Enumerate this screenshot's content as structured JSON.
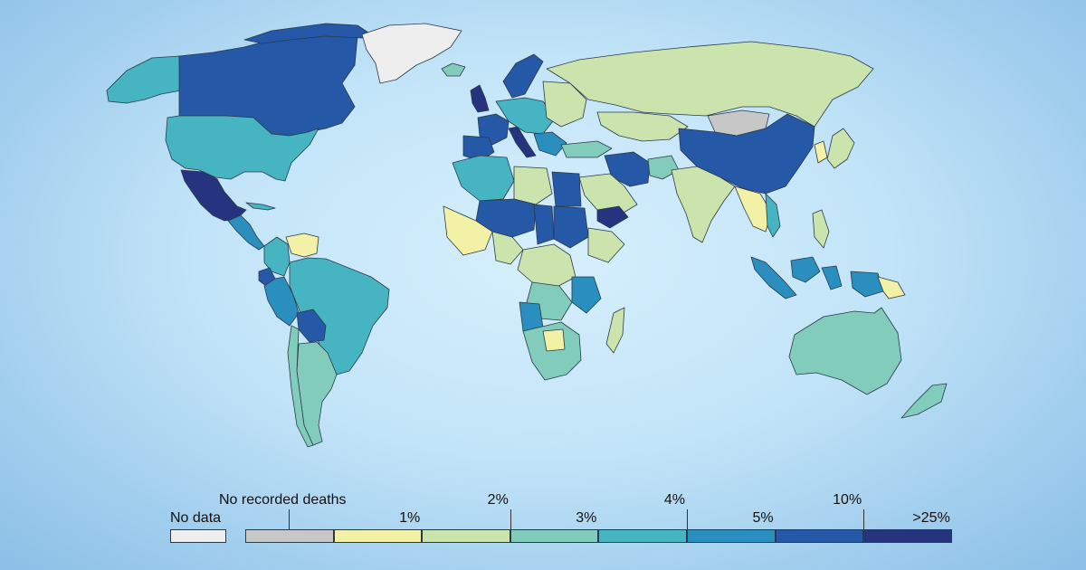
{
  "legend": {
    "no_data_label": "No data",
    "no_data_color": "#eeeeee",
    "no_recorded_label": "No recorded deaths",
    "no_recorded_color": "#c7c7c7",
    "bins": [
      {
        "color": "#f3f1a6"
      },
      {
        "color": "#cbe4ae"
      },
      {
        "color": "#82ccbb"
      },
      {
        "color": "#47b4c2"
      },
      {
        "color": "#2a8fbf"
      },
      {
        "color": "#2559a7"
      },
      {
        "color": "#263480"
      }
    ],
    "threshold_labels": [
      "1%",
      "2%",
      "3%",
      "4%",
      "5%",
      "10%",
      ">25%"
    ]
  }
}
